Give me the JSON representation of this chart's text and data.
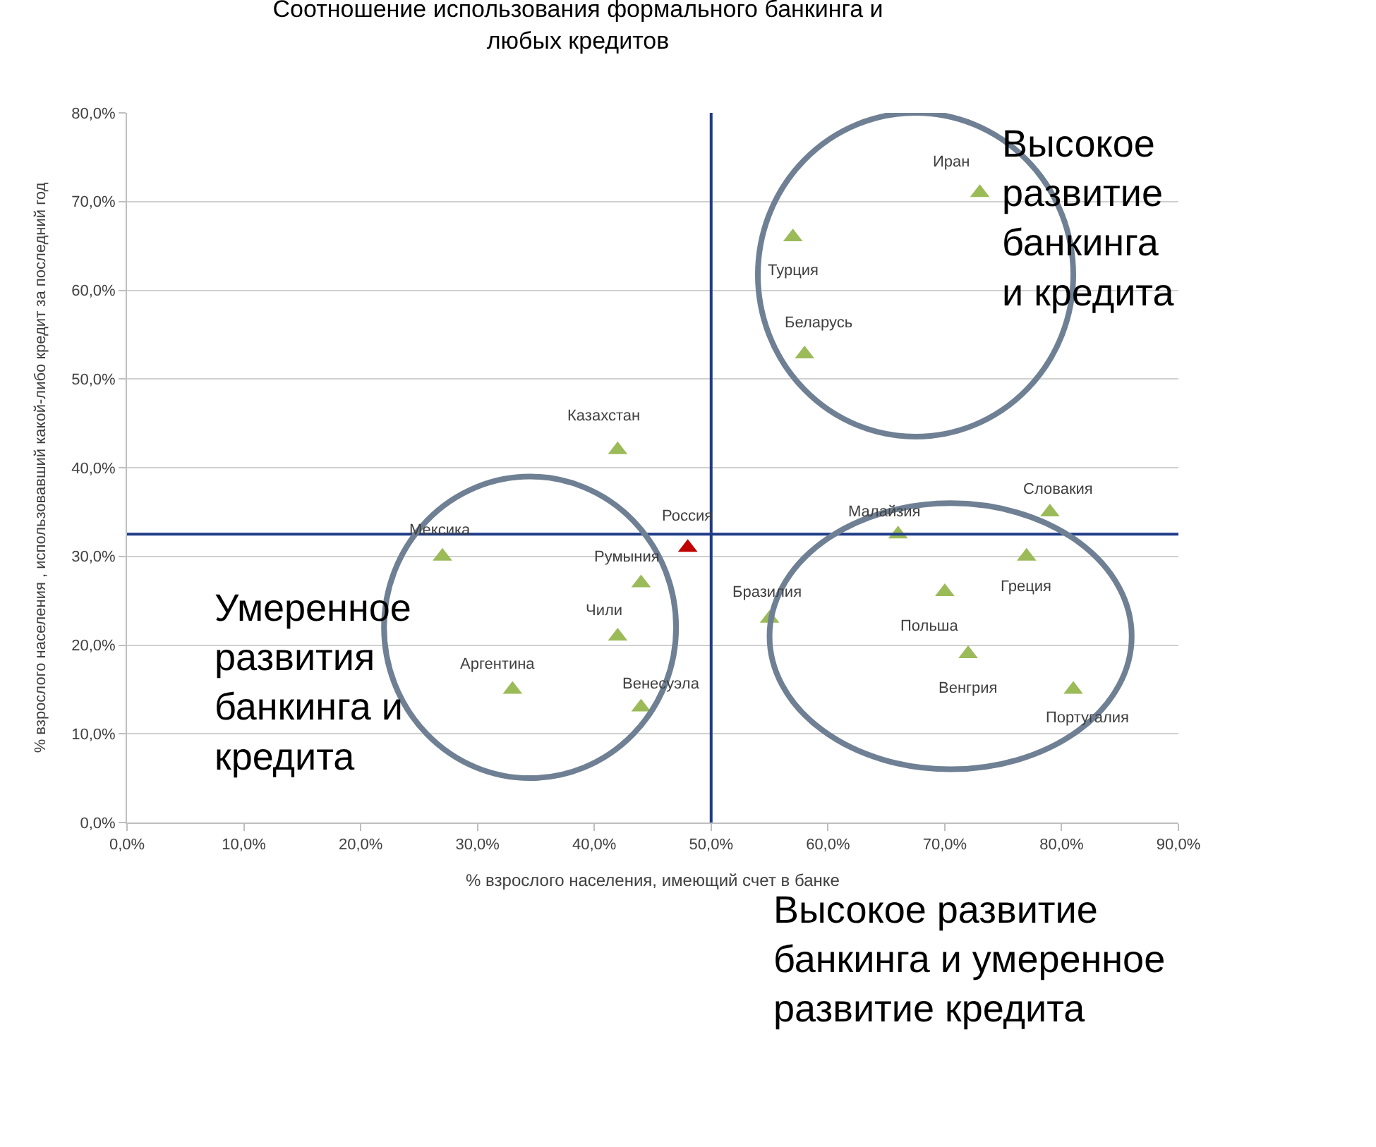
{
  "chart_data": {
    "type": "scatter",
    "title": "Соотношение использования формального банкинга и любых кредитов",
    "xlabel": "% взрослого населения, имеющий счет в банке",
    "ylabel": "% взрослого населения , использовавший какой-либо кредит за последний год",
    "x": [
      73,
      57,
      58,
      42,
      27,
      48,
      44,
      42,
      33,
      44,
      55,
      66,
      79,
      77,
      70,
      72,
      81
    ],
    "values": [
      71,
      66,
      52.8,
      42,
      30,
      31,
      27,
      21,
      15,
      13,
      23,
      32.5,
      35,
      30,
      26,
      19,
      15
    ],
    "colors": [
      "#9bbb59",
      "#9bbb59",
      "#9bbb59",
      "#9bbb59",
      "#9bbb59",
      "#c00000",
      "#9bbb59",
      "#9bbb59",
      "#9bbb59",
      "#9bbb59",
      "#9bbb59",
      "#9bbb59",
      "#9bbb59",
      "#9bbb59",
      "#9bbb59",
      "#9bbb59",
      "#9bbb59"
    ],
    "marker": "triangle",
    "xlim": [
      0,
      90
    ],
    "ylim": [
      0,
      80
    ],
    "xticks": [
      {
        "value": 0,
        "label": "0,0%"
      },
      {
        "value": 10,
        "label": "10,0%"
      },
      {
        "value": 20,
        "label": "20,0%"
      },
      {
        "value": 30,
        "label": "30,0%"
      },
      {
        "value": 40,
        "label": "40,0%"
      },
      {
        "value": 50,
        "label": "50,0%"
      },
      {
        "value": 60,
        "label": "60,0%"
      },
      {
        "value": 70,
        "label": "70,0%"
      },
      {
        "value": 80,
        "label": "80,0%"
      },
      {
        "value": 90,
        "label": "90,0%"
      }
    ],
    "yticks": [
      {
        "value": 0,
        "label": "0,0%"
      },
      {
        "value": 10,
        "label": "10,0%"
      },
      {
        "value": 20,
        "label": "20,0%"
      },
      {
        "value": 30,
        "label": "30,0%"
      },
      {
        "value": 40,
        "label": "40,0%"
      },
      {
        "value": 50,
        "label": "50,0%"
      },
      {
        "value": 60,
        "label": "60,0%"
      },
      {
        "value": 70,
        "label": "70,0%"
      },
      {
        "value": 80,
        "label": "80,0%"
      }
    ],
    "grid": "y",
    "ref_lines": [
      {
        "axis": "x",
        "value": 50,
        "color": "#1f3c88"
      },
      {
        "axis": "y",
        "value": 32.5,
        "color": "#1f3c88"
      }
    ],
    "annotations": [
      {
        "text": "Иран",
        "x": 73,
        "y": 71
      },
      {
        "text": "Турция",
        "x": 57,
        "y": 66
      },
      {
        "text": "Беларусь",
        "x": 58,
        "y": 52.8
      },
      {
        "text": "Казахстан",
        "x": 42,
        "y": 42
      },
      {
        "text": "Мексика",
        "x": 27,
        "y": 30
      },
      {
        "text": "Россия",
        "x": 48,
        "y": 31
      },
      {
        "text": "Румыния",
        "x": 44,
        "y": 27
      },
      {
        "text": "Чили",
        "x": 42,
        "y": 21
      },
      {
        "text": "Аргентина",
        "x": 33,
        "y": 15
      },
      {
        "text": "Венесуэла",
        "x": 44,
        "y": 13
      },
      {
        "text": "Бразилия",
        "x": 55,
        "y": 23
      },
      {
        "text": "Малайзия",
        "x": 66,
        "y": 32.5
      },
      {
        "text": "Словакия",
        "x": 79,
        "y": 35
      },
      {
        "text": "Греция",
        "x": 77,
        "y": 30
      },
      {
        "text": "Польша",
        "x": 70,
        "y": 26
      },
      {
        "text": "Венгрия",
        "x": 72,
        "y": 19
      },
      {
        "text": "Португалия",
        "x": 81,
        "y": 15
      },
      "Высокое развитие банкинга и кредита",
      "Умеренное развития банкинга и кредита",
      "Высокое развитие банкинга и умеренное развитие кредита"
    ]
  }
}
